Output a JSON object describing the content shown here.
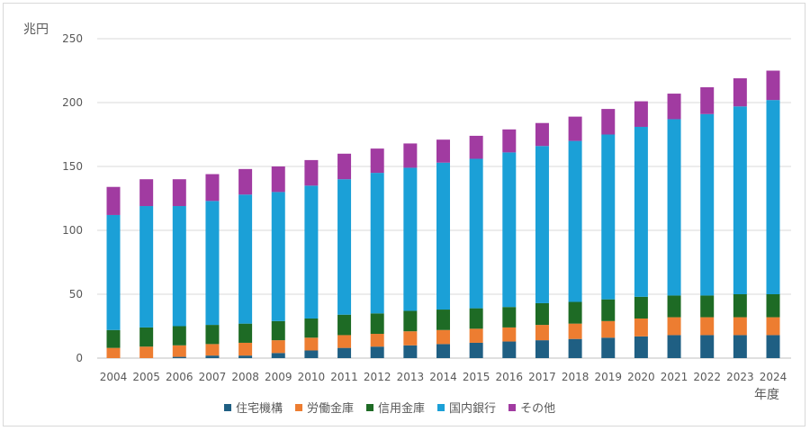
{
  "chart_data": {
    "type": "bar",
    "stacked": true,
    "y_unit_label": "兆円",
    "x_unit_label": "年度",
    "ylim": [
      0,
      250
    ],
    "yticks": [
      0,
      50,
      100,
      150,
      200,
      250
    ],
    "grid": true,
    "legend_position": "bottom",
    "categories": [
      "2004",
      "2005",
      "2006",
      "2007",
      "2008",
      "2009",
      "2010",
      "2011",
      "2012",
      "2013",
      "2014",
      "2015",
      "2016",
      "2017",
      "2018",
      "2019",
      "2020",
      "2021",
      "2022",
      "2023",
      "2024"
    ],
    "series": [
      {
        "name": "住宅機構",
        "color": "#1f5f83",
        "values": [
          0,
          0,
          1,
          2,
          2,
          4,
          6,
          8,
          9,
          10,
          11,
          12,
          13,
          14,
          15,
          16,
          17,
          18,
          18,
          18,
          18
        ]
      },
      {
        "name": "労働金庫",
        "color": "#ed7d31",
        "values": [
          8,
          9,
          9,
          9,
          10,
          10,
          10,
          10,
          10,
          11,
          11,
          11,
          11,
          12,
          12,
          13,
          14,
          14,
          14,
          14,
          14
        ]
      },
      {
        "name": "信用金庫",
        "color": "#1e6b25",
        "values": [
          14,
          15,
          15,
          15,
          15,
          15,
          15,
          16,
          16,
          16,
          16,
          16,
          16,
          17,
          17,
          17,
          17,
          17,
          17,
          18,
          18
        ]
      },
      {
        "name": "国内銀行",
        "color": "#1ba0d7",
        "values": [
          90,
          95,
          94,
          97,
          101,
          101,
          104,
          106,
          110,
          112,
          115,
          117,
          121,
          123,
          126,
          129,
          133,
          138,
          142,
          147,
          152
        ]
      },
      {
        "name": "その他",
        "color": "#a13ba1",
        "values": [
          22,
          21,
          21,
          21,
          20,
          20,
          20,
          20,
          19,
          19,
          18,
          18,
          18,
          18,
          19,
          20,
          20,
          20,
          21,
          22,
          23
        ]
      }
    ]
  }
}
